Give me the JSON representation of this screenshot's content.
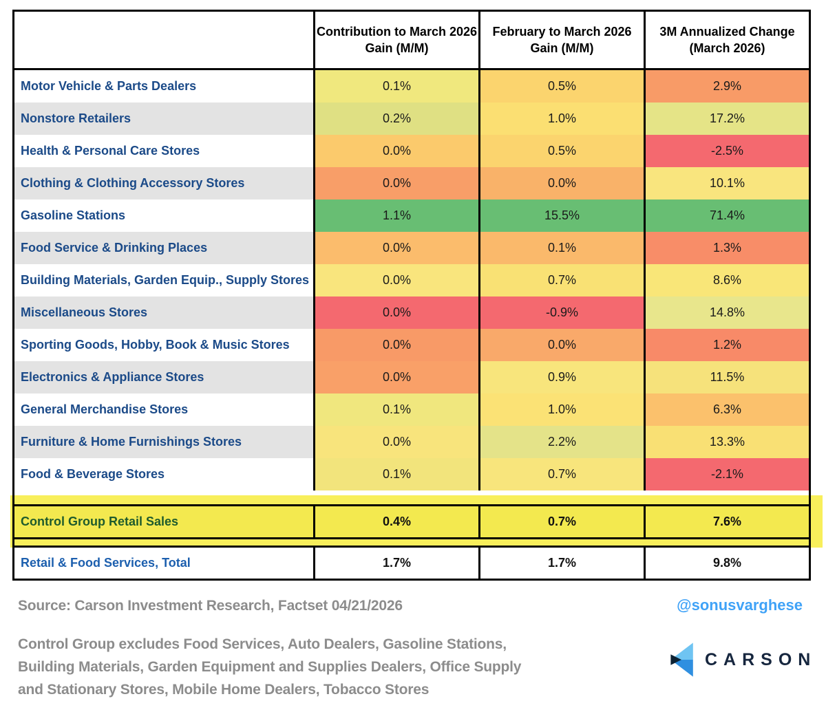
{
  "chart_data": {
    "type": "table",
    "title": "",
    "columns": [
      "Contribution to March  2026\nGain (M/M)",
      "February to March 2026\nGain (M/M)",
      "3M Annualized Change\n(March 2026)"
    ],
    "rows": [
      {
        "label": "Motor Vehicle & Parts Dealers",
        "values": [
          "0.1%",
          "0.5%",
          "2.9%"
        ],
        "colors": [
          "#F0E87E",
          "#FBD46E",
          "#F89B67"
        ]
      },
      {
        "label": "Nonstore Retailers",
        "values": [
          "0.2%",
          "1.0%",
          "17.2%"
        ],
        "colors": [
          "#DFE083",
          "#FBDF72",
          "#E5E487"
        ]
      },
      {
        "label": "Health & Personal Care Stores",
        "values": [
          "0.0%",
          "0.5%",
          "-2.5%"
        ],
        "colors": [
          "#FBCA6C",
          "#FBD46E",
          "#F4696F"
        ]
      },
      {
        "label": "Clothing & Clothing Accessory Stores",
        "values": [
          "0.0%",
          "0.0%",
          "10.1%"
        ],
        "colors": [
          "#F89E68",
          "#F9B269",
          "#F9E57E"
        ]
      },
      {
        "label": "Gasoline Stations",
        "values": [
          "1.1%",
          "15.5%",
          "71.4%"
        ],
        "colors": [
          "#68BE73",
          "#68BE73",
          "#68BE73"
        ]
      },
      {
        "label": "Food Service & Drinking Places",
        "values": [
          "0.0%",
          "0.1%",
          "1.3%"
        ],
        "colors": [
          "#FBBC6C",
          "#FAB96B",
          "#F88D68"
        ]
      },
      {
        "label": "Building Materials, Garden Equip., Supply Stores",
        "values": [
          "0.0%",
          "0.7%",
          "8.6%"
        ],
        "colors": [
          "#F9E57D",
          "#F9E174",
          "#F9E678"
        ]
      },
      {
        "label": "Miscellaneous Stores",
        "values": [
          "0.0%",
          "-0.9%",
          "14.8%"
        ],
        "colors": [
          "#F4696F",
          "#F4696F",
          "#E8E68C"
        ]
      },
      {
        "label": "Sporting Goods, Hobby, Book & Music Stores",
        "values": [
          "0.0%",
          "0.0%",
          "1.2%"
        ],
        "colors": [
          "#F89A67",
          "#F9A96A",
          "#F88A68"
        ]
      },
      {
        "label": "Electronics & Appliance Stores",
        "values": [
          "0.0%",
          "0.9%",
          "11.5%"
        ],
        "colors": [
          "#F9A068",
          "#F8E57C",
          "#F6E27B"
        ]
      },
      {
        "label": "General Merchandise Stores",
        "values": [
          "0.1%",
          "1.0%",
          "6.3%"
        ],
        "colors": [
          "#F0E77E",
          "#FBE275",
          "#FBC16C"
        ]
      },
      {
        "label": "Furniture & Home Furnishings Stores",
        "values": [
          "0.0%",
          "2.2%",
          "13.3%"
        ],
        "colors": [
          "#F8E47C",
          "#E4E389",
          "#F9E074"
        ]
      },
      {
        "label": "Food & Beverage Stores",
        "values": [
          "0.1%",
          "0.7%",
          "-2.1%"
        ],
        "colors": [
          "#F2E47C",
          "#F8E57C",
          "#F4696F"
        ]
      }
    ],
    "control_group_row": {
      "label": "Control Group Retail Sales",
      "values": [
        "0.4%",
        "0.7%",
        "7.6%"
      ]
    },
    "total_row": {
      "label": "Retail & Food Services, Total",
      "values": [
        "1.7%",
        "1.7%",
        "9.8%"
      ]
    },
    "legend_position": "none",
    "grid": "black cell borders on columns, header and summary rows"
  },
  "footer": {
    "source": "Source: Carson Investment Research, Factset  04/21/2026",
    "handle": "@sonusvarghese",
    "note_lines": [
      "Control Group excludes Food Services, Auto Dealers, Gasoline Stations,",
      "Building Materials, Garden Equipment and Supplies Dealers, Office Supply",
      "and Stationary Stores, Mobile Home Dealers, Tobacco Stores"
    ],
    "brand": "CARSON"
  },
  "colors": {
    "row_label": "#1B4A88",
    "control_label": "#1E5B2D",
    "total_label": "#1C5FAE",
    "stripe_gray": "#E3E3E3",
    "highlight_band": "#F8EF5B",
    "control_cell_bg": "#F3E94F",
    "handle_blue": "#3FA2F7",
    "note_gray": "#8C8C8C",
    "brand_navy": "#16263E",
    "logo_light_blue": "#6FC4F2",
    "logo_mid_blue": "#2F8FE0",
    "logo_dark_navy": "#0D2233"
  }
}
